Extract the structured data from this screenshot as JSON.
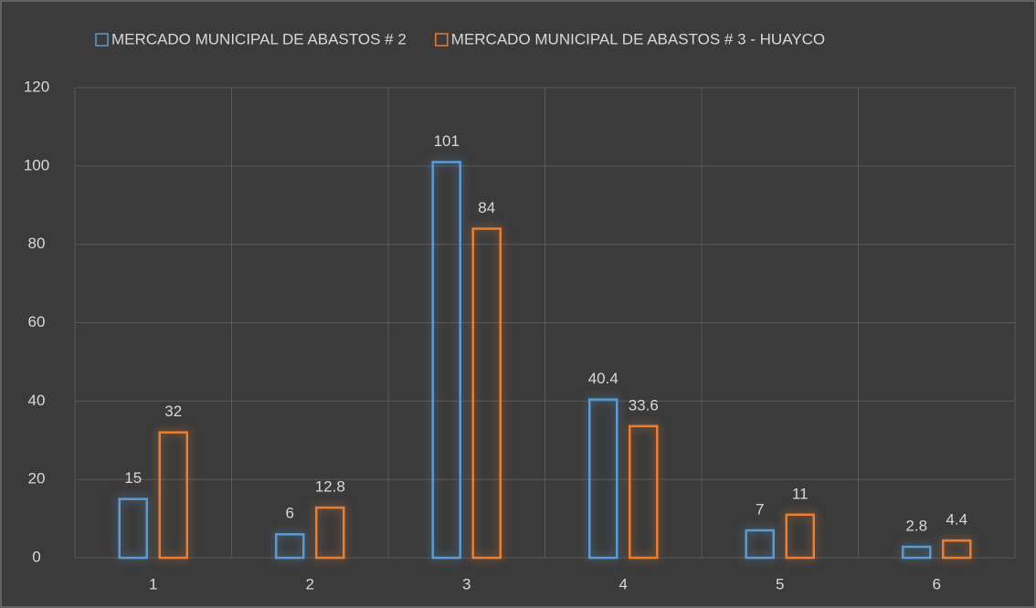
{
  "chart_data": {
    "type": "bar",
    "categories": [
      "1",
      "2",
      "3",
      "4",
      "5",
      "6"
    ],
    "series": [
      {
        "name": "MERCADO MUNICIPAL DE ABASTOS # 2",
        "color": "#5b9bd5",
        "values": [
          15,
          6,
          101,
          40.4,
          7,
          2.8
        ]
      },
      {
        "name": "MERCADO MUNICIPAL DE ABASTOS # 3 - HUAYCO",
        "color": "#ed7d31",
        "values": [
          32,
          12.8,
          84,
          33.6,
          11,
          4.4
        ]
      }
    ],
    "ylim": [
      0,
      120
    ],
    "yticks": [
      0,
      20,
      40,
      60,
      80,
      100,
      120
    ],
    "grid": true,
    "legend": "top"
  }
}
